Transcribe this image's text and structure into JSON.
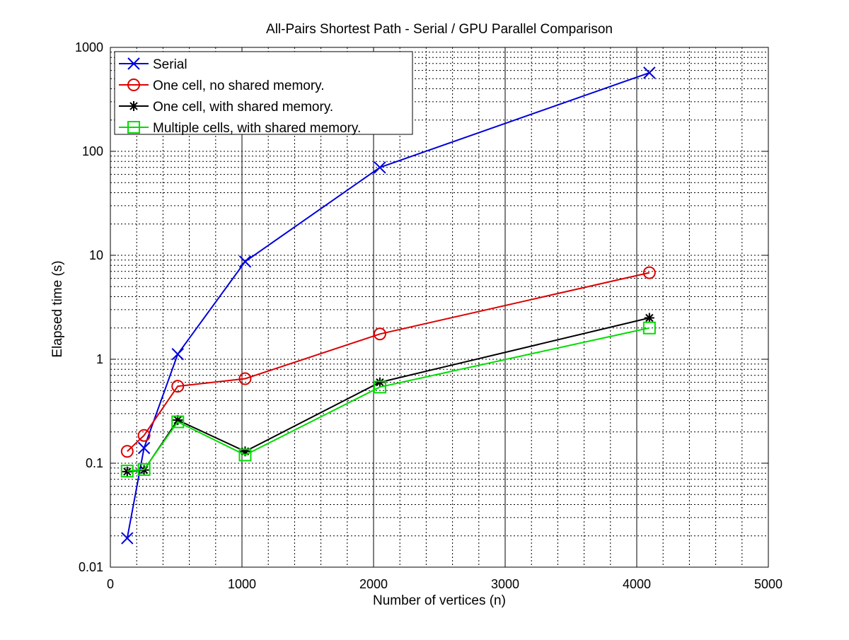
{
  "chart_data": {
    "type": "line",
    "title": "All-Pairs Shortest Path - Serial / GPU Parallel Comparison",
    "xlabel": "Number of vertices (n)",
    "ylabel": "Elapsed time (s)",
    "xlim": [
      0,
      5000
    ],
    "ylim": [
      0.01,
      1000
    ],
    "yscale": "log",
    "grid": true,
    "legend_position": "top-left",
    "x_ticks": [
      0,
      1000,
      2000,
      3000,
      4000,
      5000
    ],
    "x_tick_labels": [
      "0",
      "1000",
      "2000",
      "3000",
      "4000",
      "5000"
    ],
    "y_ticks": [
      0.01,
      0.1,
      1,
      10,
      100,
      1000
    ],
    "y_tick_labels": [
      "0.01",
      "0.1",
      "1",
      "10",
      "100",
      "1000"
    ],
    "x": [
      128,
      256,
      512,
      1024,
      2048,
      4096
    ],
    "series": [
      {
        "name": "Serial",
        "color": "#0000dd",
        "marker": "x",
        "values": [
          0.019,
          0.14,
          1.12,
          8.7,
          70,
          570
        ]
      },
      {
        "name": "One cell, no shared memory.",
        "color": "#dd0000",
        "marker": "circle",
        "values": [
          0.13,
          0.185,
          0.55,
          0.65,
          1.75,
          6.8
        ]
      },
      {
        "name": "One cell, with shared memory.",
        "color": "#000000",
        "marker": "asterisk",
        "values": [
          0.083,
          0.086,
          0.26,
          0.13,
          0.6,
          2.5
        ]
      },
      {
        "name": "Multiple cells, with shared memory.",
        "color": "#00dd00",
        "marker": "square",
        "values": [
          0.084,
          0.087,
          0.25,
          0.12,
          0.54,
          2.0
        ]
      }
    ]
  }
}
